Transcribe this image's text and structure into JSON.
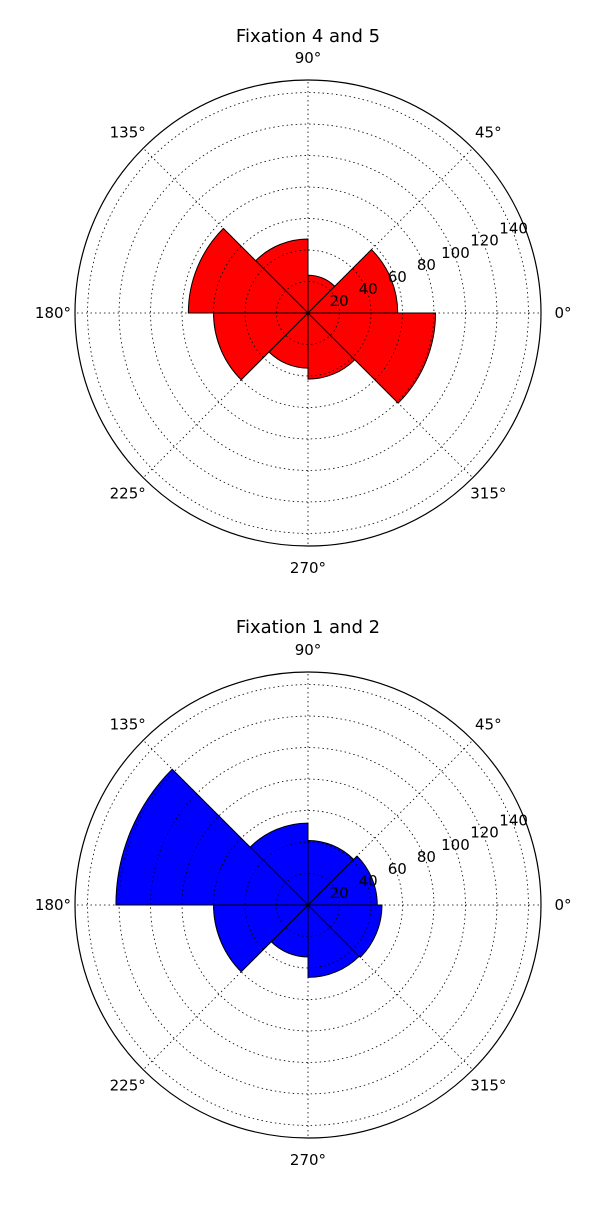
{
  "chart_data": [
    {
      "type": "polar-bar",
      "title": "Fixation 4 and 5",
      "color": "#ff0000",
      "angle_ticks": [
        {
          "deg": 0,
          "label": "0°"
        },
        {
          "deg": 45,
          "label": "45°"
        },
        {
          "deg": 90,
          "label": "90°"
        },
        {
          "deg": 135,
          "label": "135°"
        },
        {
          "deg": 180,
          "label": "180°"
        },
        {
          "deg": 225,
          "label": "225°"
        },
        {
          "deg": 270,
          "label": "270°"
        },
        {
          "deg": 315,
          "label": "315°"
        }
      ],
      "radial_ticks": [
        {
          "value": 20,
          "label": "20"
        },
        {
          "value": 40,
          "label": "40"
        },
        {
          "value": 60,
          "label": "60"
        },
        {
          "value": 80,
          "label": "80"
        },
        {
          "value": 100,
          "label": "100"
        },
        {
          "value": 120,
          "label": "120"
        },
        {
          "value": 140,
          "label": "140"
        }
      ],
      "rmax": 148,
      "grid": true,
      "bars": [
        {
          "start": 0,
          "end": 45,
          "value": 57
        },
        {
          "start": 45,
          "end": 90,
          "value": 24
        },
        {
          "start": 90,
          "end": 135,
          "value": 47
        },
        {
          "start": 135,
          "end": 180,
          "value": 76
        },
        {
          "start": 180,
          "end": 225,
          "value": 60
        },
        {
          "start": 225,
          "end": 270,
          "value": 35
        },
        {
          "start": 270,
          "end": 315,
          "value": 42
        },
        {
          "start": 315,
          "end": 360,
          "value": 81
        }
      ]
    },
    {
      "type": "polar-bar",
      "title": "Fixation 1 and 2",
      "color": "#0000ff",
      "angle_ticks": [
        {
          "deg": 0,
          "label": "0°"
        },
        {
          "deg": 45,
          "label": "45°"
        },
        {
          "deg": 90,
          "label": "90°"
        },
        {
          "deg": 135,
          "label": "135°"
        },
        {
          "deg": 180,
          "label": "180°"
        },
        {
          "deg": 225,
          "label": "225°"
        },
        {
          "deg": 270,
          "label": "270°"
        },
        {
          "deg": 315,
          "label": "315°"
        }
      ],
      "radial_ticks": [
        {
          "value": 20,
          "label": "20"
        },
        {
          "value": 40,
          "label": "40"
        },
        {
          "value": 60,
          "label": "60"
        },
        {
          "value": 80,
          "label": "80"
        },
        {
          "value": 100,
          "label": "100"
        },
        {
          "value": 120,
          "label": "120"
        },
        {
          "value": 140,
          "label": "140"
        }
      ],
      "rmax": 148,
      "grid": true,
      "bars": [
        {
          "start": 0,
          "end": 45,
          "value": 44
        },
        {
          "start": 45,
          "end": 90,
          "value": 41
        },
        {
          "start": 90,
          "end": 135,
          "value": 52
        },
        {
          "start": 135,
          "end": 180,
          "value": 122
        },
        {
          "start": 180,
          "end": 225,
          "value": 60
        },
        {
          "start": 225,
          "end": 270,
          "value": 33
        },
        {
          "start": 270,
          "end": 315,
          "value": 46
        },
        {
          "start": 315,
          "end": 360,
          "value": 47
        }
      ]
    }
  ]
}
